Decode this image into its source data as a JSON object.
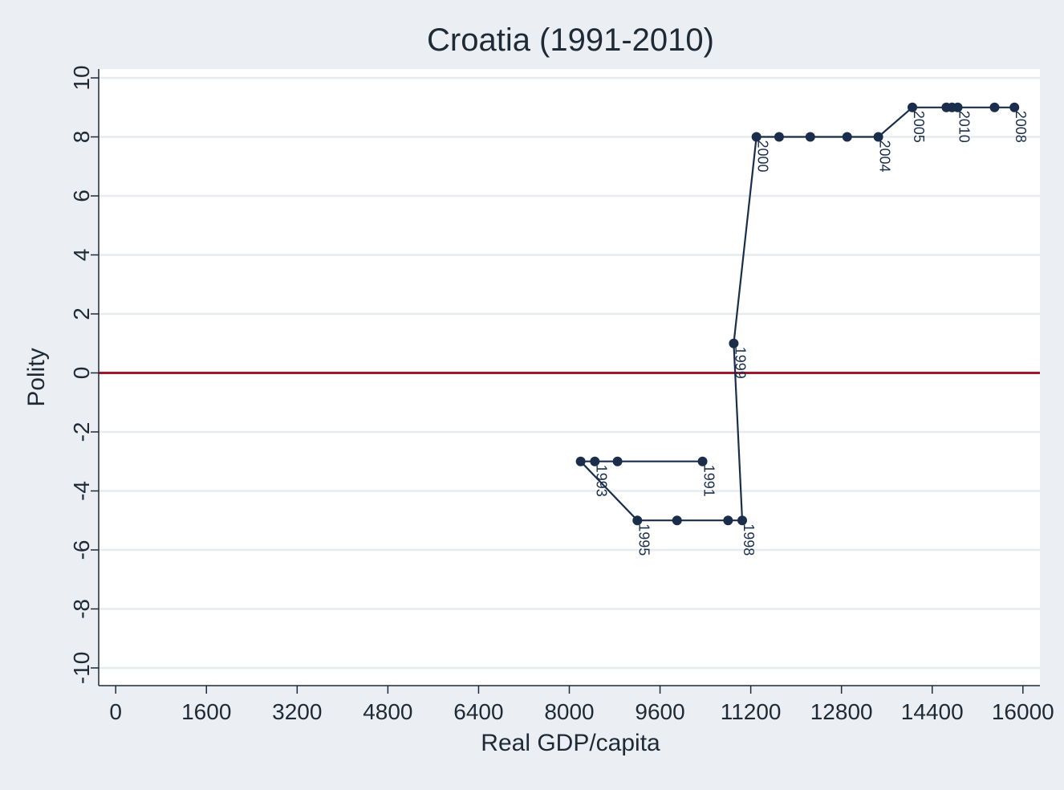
{
  "chart_data": {
    "type": "scatter",
    "title": "Croatia (1991-2010)",
    "xlabel": "Real GDP/capita",
    "ylabel": "Polity",
    "xlim": [
      -300,
      16300
    ],
    "ylim": [
      -10.6,
      10.3
    ],
    "xticks": [
      0,
      1600,
      3200,
      4800,
      6400,
      8000,
      9600,
      11200,
      12800,
      14400,
      16000
    ],
    "yticks": [
      -10,
      -8,
      -6,
      -4,
      -2,
      0,
      2,
      4,
      6,
      8,
      10
    ],
    "reference_line": {
      "y": 0,
      "color": "#a0182a"
    },
    "grid": "horizontal",
    "colors": {
      "series": "#1a2e4c",
      "background": "#ebeff3",
      "plot_area": "#ffffff",
      "gridline": "#e6ebf0"
    },
    "series": [
      {
        "points": [
          {
            "x": 10350,
            "y": -3,
            "label": "1991"
          },
          {
            "x": 8850,
            "y": -3,
            "label": ""
          },
          {
            "x": 8450,
            "y": -3,
            "label": "1993"
          },
          {
            "x": 8200,
            "y": -3,
            "label": ""
          },
          {
            "x": 9200,
            "y": -5,
            "label": "1995"
          },
          {
            "x": 9900,
            "y": -5,
            "label": ""
          },
          {
            "x": 10800,
            "y": -5,
            "label": ""
          },
          {
            "x": 11050,
            "y": -5,
            "label": "1998"
          },
          {
            "x": 10900,
            "y": 1,
            "label": "1999"
          },
          {
            "x": 11300,
            "y": 8,
            "label": "2000"
          },
          {
            "x": 11700,
            "y": 8,
            "label": ""
          },
          {
            "x": 12250,
            "y": 8,
            "label": ""
          },
          {
            "x": 12900,
            "y": 8,
            "label": ""
          },
          {
            "x": 13450,
            "y": 8,
            "label": "2004"
          },
          {
            "x": 14050,
            "y": 9,
            "label": "2005"
          },
          {
            "x": 14650,
            "y": 9,
            "label": ""
          },
          {
            "x": 15500,
            "y": 9,
            "label": ""
          },
          {
            "x": 15850,
            "y": 9,
            "label": "2008"
          },
          {
            "x": 14750,
            "y": 9,
            "label": ""
          },
          {
            "x": 14850,
            "y": 9,
            "label": "2010"
          }
        ]
      }
    ]
  }
}
